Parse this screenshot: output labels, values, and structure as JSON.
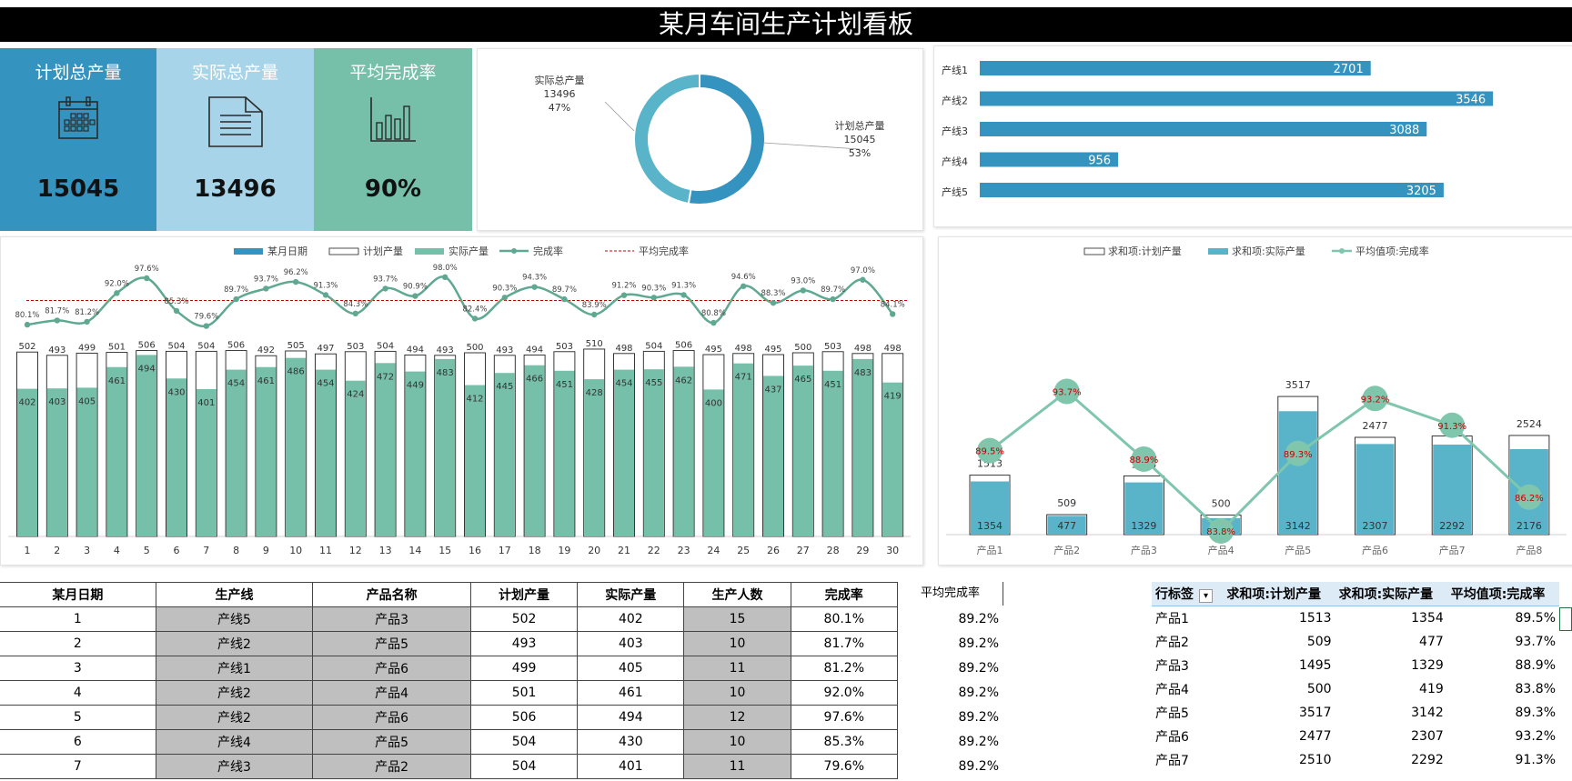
{
  "title": "某月车间生产计划看板",
  "kpis": [
    {
      "label": "计划总产量",
      "value": "15045",
      "color": "#3593bf",
      "icon": "calendar-icon"
    },
    {
      "label": "实际总产量",
      "value": "13496",
      "color": "#a7d4e8",
      "icon": "document-icon"
    },
    {
      "label": "平均完成率",
      "value": "90%",
      "color": "#76bfa8",
      "icon": "bar-chart-icon"
    }
  ],
  "chart_data": [
    {
      "type": "pie",
      "variant": "donut",
      "slices": [
        {
          "label": "计划总产量",
          "value": 15045,
          "percent": "53%",
          "color": "#3593bf"
        },
        {
          "label": "实际总产量",
          "value": 13496,
          "percent": "47%",
          "color": "#5ab4c9"
        }
      ]
    },
    {
      "type": "bar",
      "orientation": "horizontal",
      "categories": [
        "产线1",
        "产线2",
        "产线3",
        "产线4",
        "产线5"
      ],
      "values": [
        2701,
        3546,
        3088,
        956,
        3205
      ],
      "xlim": [
        0,
        4000
      ],
      "color": "#3593bf"
    },
    {
      "type": "bar",
      "legend": [
        "某月日期",
        "计划产量",
        "实际产量",
        "完成率",
        "平均完成率"
      ],
      "categories": [
        "1",
        "2",
        "3",
        "4",
        "5",
        "6",
        "7",
        "8",
        "9",
        "10",
        "11",
        "12",
        "13",
        "14",
        "15",
        "16",
        "17",
        "18",
        "19",
        "20",
        "21",
        "22",
        "23",
        "24",
        "25",
        "26",
        "27",
        "28",
        "29",
        "30"
      ],
      "series": [
        {
          "name": "计划产量",
          "values": [
            502,
            493,
            499,
            501,
            506,
            504,
            504,
            506,
            492,
            505,
            497,
            503,
            504,
            494,
            493,
            500,
            493,
            494,
            503,
            510,
            498,
            504,
            506,
            495,
            498,
            495,
            500,
            503,
            498,
            498
          ]
        },
        {
          "name": "实际产量",
          "values": [
            402,
            403,
            405,
            461,
            494,
            430,
            401,
            454,
            461,
            486,
            454,
            424,
            472,
            449,
            483,
            412,
            445,
            466,
            451,
            428,
            454,
            455,
            462,
            400,
            471,
            437,
            465,
            451,
            483,
            419
          ]
        },
        {
          "name": "完成率",
          "values": [
            "80.1%",
            "81.7%",
            "81.2%",
            "92.0%",
            "97.6%",
            "85.3%",
            "79.6%",
            "89.7%",
            "93.7%",
            "96.2%",
            "91.3%",
            "84.3%",
            "93.7%",
            "90.9%",
            "98.0%",
            "82.4%",
            "90.3%",
            "94.3%",
            "89.7%",
            "83.9%",
            "91.2%",
            "90.3%",
            "91.3%",
            "80.8%",
            "94.6%",
            "88.3%",
            "93.0%",
            "89.7%",
            "97.0%",
            "84.1%"
          ]
        },
        {
          "name": "平均完成率",
          "value": "89.2%"
        }
      ],
      "ylim": [
        0,
        700
      ],
      "colors": {
        "plan": "#ffffff",
        "actual": "#76bfa8",
        "rate": "#5fa891",
        "avg": "#c00000"
      }
    },
    {
      "type": "bar",
      "legend": [
        "求和项:计划产量",
        "求和项:实际产量",
        "平均值项:完成率"
      ],
      "categories": [
        "产品1",
        "产品2",
        "产品3",
        "产品4",
        "产品5",
        "产品6",
        "产品7",
        "产品8"
      ],
      "series": [
        {
          "name": "求和项:计划产量",
          "values": [
            1513,
            509,
            1495,
            500,
            3517,
            2477,
            2510,
            2524
          ]
        },
        {
          "name": "求和项:实际产量",
          "values": [
            1354,
            477,
            1329,
            419,
            3142,
            2307,
            2292,
            2176
          ]
        },
        {
          "name": "平均值项:完成率",
          "values": [
            "89.5%",
            "93.7%",
            "88.9%",
            "83.8%",
            "89.3%",
            "93.2%",
            "91.3%",
            "86.2%"
          ]
        }
      ],
      "ylim": [
        0,
        4000
      ],
      "colors": {
        "plan": "#ffffff",
        "actual": "#5ab4c9",
        "rate": "#7fc6ad",
        "rate_label": "#c00000"
      }
    }
  ],
  "table": {
    "headers": [
      "某月日期",
      "生产线",
      "产品名称",
      "计划产量",
      "实际产量",
      "生产人数",
      "完成率"
    ],
    "rows": [
      [
        "1",
        "产线5",
        "产品3",
        "502",
        "402",
        "15",
        "80.1%"
      ],
      [
        "2",
        "产线2",
        "产品5",
        "493",
        "403",
        "10",
        "81.7%"
      ],
      [
        "3",
        "产线1",
        "产品6",
        "499",
        "405",
        "11",
        "81.2%"
      ],
      [
        "4",
        "产线2",
        "产品4",
        "501",
        "461",
        "10",
        "92.0%"
      ],
      [
        "5",
        "产线2",
        "产品6",
        "506",
        "494",
        "12",
        "97.6%"
      ],
      [
        "6",
        "产线4",
        "产品5",
        "504",
        "430",
        "10",
        "85.3%"
      ],
      [
        "7",
        "产线3",
        "产品2",
        "504",
        "401",
        "11",
        "79.6%"
      ]
    ]
  },
  "avg_column": {
    "header": "平均完成率",
    "values": [
      "89.2%",
      "89.2%",
      "89.2%",
      "89.2%",
      "89.2%",
      "89.2%",
      "89.2%"
    ]
  },
  "pivot": {
    "headers": [
      "行标签",
      "求和项:计划产量",
      "求和项:实际产量",
      "平均值项:完成率"
    ],
    "rows": [
      [
        "产品1",
        "1513",
        "1354",
        "89.5%"
      ],
      [
        "产品2",
        "509",
        "477",
        "93.7%"
      ],
      [
        "产品3",
        "1495",
        "1329",
        "88.9%"
      ],
      [
        "产品4",
        "500",
        "419",
        "83.8%"
      ],
      [
        "产品5",
        "3517",
        "3142",
        "89.3%"
      ],
      [
        "产品6",
        "2477",
        "2307",
        "93.2%"
      ],
      [
        "产品7",
        "2510",
        "2292",
        "91.3%"
      ]
    ]
  }
}
